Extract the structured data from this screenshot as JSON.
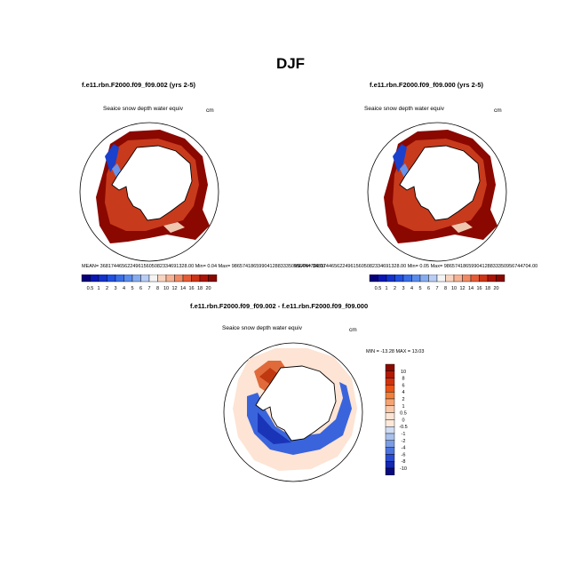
{
  "figure": {
    "title": "DJF"
  },
  "panels": [
    {
      "title": "f.e11.rbn.F2000.f09_f09.002 (yrs 2-5)",
      "variable": "Seaice snow depth water equiv",
      "units": "cm",
      "stats": {
        "mean_label": "MEAN=",
        "mean": "36817446562249615605082334691328.00",
        "min_label": "Min=",
        "min": "0.04",
        "max_label": "Max=",
        "max": "98657418659904128833350956744704.00"
      }
    },
    {
      "title": "f.e11.rbn.F2000.f09_f09.000 (yrs 2-5)",
      "variable": "Seaice snow depth water equiv",
      "units": "cm",
      "stats": {
        "mean_label": "MEAN=",
        "mean": "36817446562249615605082334691328.00",
        "min_label": "Min=",
        "min": "0.05",
        "max_label": "Max=",
        "max": "98657418659904128833350956744704.00"
      }
    }
  ],
  "diff_panel": {
    "title": "f.e11.rbn.F2000.f09_f09.002 - f.e11.rbn.F2000.f09_f09.000",
    "variable": "Seaice snow depth water equiv",
    "units": "cm",
    "range_text": "MIN = -13.28 MAX = 13.03"
  },
  "colorbar_abs": {
    "labels": [
      "0.5",
      "1",
      "2",
      "3",
      "4",
      "5",
      "6",
      "7",
      "8",
      "10",
      "12",
      "14",
      "16",
      "18",
      "20"
    ],
    "colors": [
      "#08007a",
      "#0a16b4",
      "#1232cc",
      "#2050e0",
      "#3a6ee6",
      "#5a8cec",
      "#86acf0",
      "#b8ccf4",
      "#f4f4f4",
      "#f8d4c0",
      "#f6b294",
      "#f08a64",
      "#e45c36",
      "#cc3416",
      "#aa1408",
      "#880800"
    ]
  },
  "colorbar_diff": {
    "labels": [
      "10",
      "8",
      "6",
      "4",
      "2",
      "1",
      "0.5",
      "0",
      "-0.5",
      "-1",
      "-2",
      "-4",
      "-6",
      "-8",
      "-10"
    ],
    "colors": [
      "#8a0a00",
      "#b01a06",
      "#d0320e",
      "#e85418",
      "#f0803a",
      "#f4a474",
      "#f8c8a8",
      "#fbe4d4",
      "#fde8da",
      "#d0dcf4",
      "#a8c0ec",
      "#7a9ce4",
      "#4c74dc",
      "#2a4cd0",
      "#1428b0",
      "#080a80"
    ]
  },
  "chart_data": {
    "type": "heatmap",
    "title": "DJF",
    "projection": "south polar stereographic",
    "fields": [
      {
        "name": "f.e11.rbn.F2000.f09_f09.002 (yrs 2-5)",
        "min": 0.04,
        "max_display": 20
      },
      {
        "name": "f.e11.rbn.F2000.f09_f09.000 (yrs 2-5)",
        "min": 0.05,
        "max_display": 20
      },
      {
        "name": "f.e11.rbn.F2000.f09_f09.002 - f.e11.rbn.F2000.f09_f09.000",
        "min": -13.28,
        "max": 13.03
      }
    ]
  }
}
